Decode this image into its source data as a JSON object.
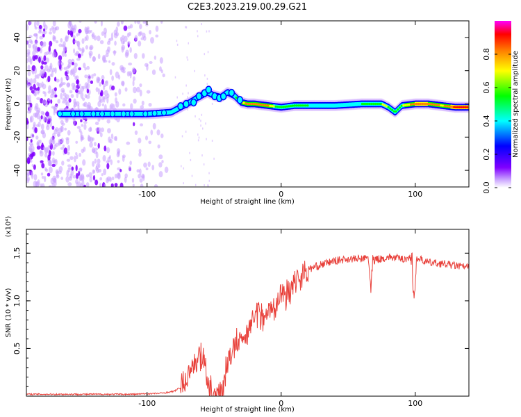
{
  "figure": {
    "title": "C2E3.2023.219.00.29.G21"
  },
  "chart_data": [
    {
      "type": "heatmap",
      "xlabel": "Height of straight line (km)",
      "ylabel": "Frequency (Hz)",
      "xlim": [
        -190,
        140
      ],
      "ylim": [
        -50,
        50
      ],
      "xticks": [
        -100,
        0,
        100
      ],
      "yticks": [
        -40,
        -20,
        0,
        20,
        40
      ],
      "colorbar": {
        "label": "Normalized spectral amplitude",
        "range": [
          0,
          1
        ],
        "ticks": [
          0.0,
          0.2,
          0.4,
          0.6,
          0.8
        ],
        "colormap": [
          "#ffffff",
          "#c8a0ff",
          "#8000ff",
          "#0000ff",
          "#00ffff",
          "#00ff00",
          "#ffff00",
          "#ff8000",
          "#ff0000",
          "#ff00ff"
        ]
      },
      "ridge": {
        "x": [
          -165,
          -140,
          -120,
          -100,
          -90,
          -82,
          -75,
          -68,
          -62,
          -55,
          -50,
          -45,
          -40,
          -35,
          -30,
          -25,
          -20,
          -10,
          0,
          10,
          20,
          40,
          60,
          75,
          80,
          85,
          90,
          100,
          110,
          120,
          130,
          140
        ],
        "frequency": [
          -6,
          -6,
          -6,
          -6,
          -5.5,
          -5,
          -2,
          1,
          4,
          7,
          5,
          4,
          7,
          5,
          1,
          0,
          0,
          -1,
          -2,
          -1,
          -1,
          -1,
          0,
          0,
          -2,
          -5,
          -1,
          0,
          0,
          -1,
          -2,
          -2
        ],
        "amplitude": [
          0.3,
          0.3,
          0.32,
          0.32,
          0.35,
          0.4,
          0.45,
          0.45,
          0.45,
          0.4,
          0.45,
          0.45,
          0.45,
          0.5,
          0.75,
          0.85,
          0.9,
          0.85,
          0.6,
          0.6,
          0.55,
          0.5,
          0.55,
          0.7,
          0.7,
          0.6,
          0.7,
          0.9,
          0.9,
          0.8,
          0.95,
          0.95
        ]
      },
      "noise_region_x": [
        -190,
        -85
      ]
    },
    {
      "type": "line",
      "xlabel": "Height of straight line (km)",
      "ylabel": "SNR (10 * v/v)",
      "scale_label": "(x10⁴)",
      "xlim": [
        -190,
        140
      ],
      "ylim": [
        0,
        1.75
      ],
      "xticks": [
        -100,
        0,
        100
      ],
      "yticks": [
        0.5,
        1.0,
        1.5
      ],
      "line_color": "#e8403a",
      "series": [
        {
          "x": [
            -190,
            -150,
            -110,
            -90,
            -80,
            -72,
            -66,
            -62,
            -58,
            -55,
            -50,
            -45,
            -40,
            -36,
            -32,
            -28,
            -24,
            -20,
            -15,
            -10,
            -5,
            0,
            5,
            10,
            15,
            20,
            30,
            40,
            50,
            60,
            65,
            67,
            70,
            75,
            80,
            90,
            97,
            99,
            101,
            110,
            120,
            130,
            140
          ],
          "values": [
            0.02,
            0.02,
            0.02,
            0.03,
            0.05,
            0.12,
            0.32,
            0.45,
            0.4,
            0.1,
            0.02,
            0.05,
            0.3,
            0.5,
            0.55,
            0.62,
            0.72,
            0.85,
            0.85,
            0.88,
            0.95,
            1.05,
            1.1,
            1.2,
            1.27,
            1.33,
            1.38,
            1.42,
            1.44,
            1.44,
            1.45,
            1.12,
            1.44,
            1.44,
            1.46,
            1.44,
            1.45,
            0.95,
            1.45,
            1.4,
            1.39,
            1.37,
            1.35
          ]
        }
      ]
    }
  ]
}
